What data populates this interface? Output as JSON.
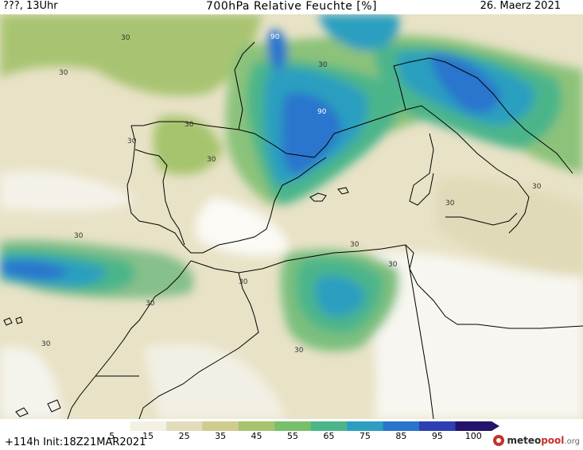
{
  "header": {
    "left": "???, 13Uhr",
    "title": "700hPa Relative Feuchte [%]",
    "date": "26. Maerz 2021"
  },
  "footer": {
    "init": "+114h  Init:18Z21MAR2021",
    "logo_prefix": "meteo",
    "logo_main": "pool",
    "logo_suffix": ".org"
  },
  "colorbar": {
    "labels": [
      "5",
      "15",
      "25",
      "35",
      "45",
      "55",
      "65",
      "75",
      "85",
      "95",
      "100"
    ],
    "colors": [
      "#ffffff",
      "#f3f1e3",
      "#e3dcbc",
      "#cfcc8f",
      "#a6c46d",
      "#78bf6a",
      "#4cb58a",
      "#2c9fc0",
      "#2a74cd",
      "#2c3fb4",
      "#24136b"
    ]
  },
  "map": {
    "region": "Western Mediterranean",
    "contour_labels": [
      "30",
      "30",
      "30",
      "30",
      "30",
      "30",
      "30",
      "30",
      "30",
      "30",
      "30",
      "30",
      "30",
      "30",
      "30",
      "90",
      "90"
    ]
  }
}
